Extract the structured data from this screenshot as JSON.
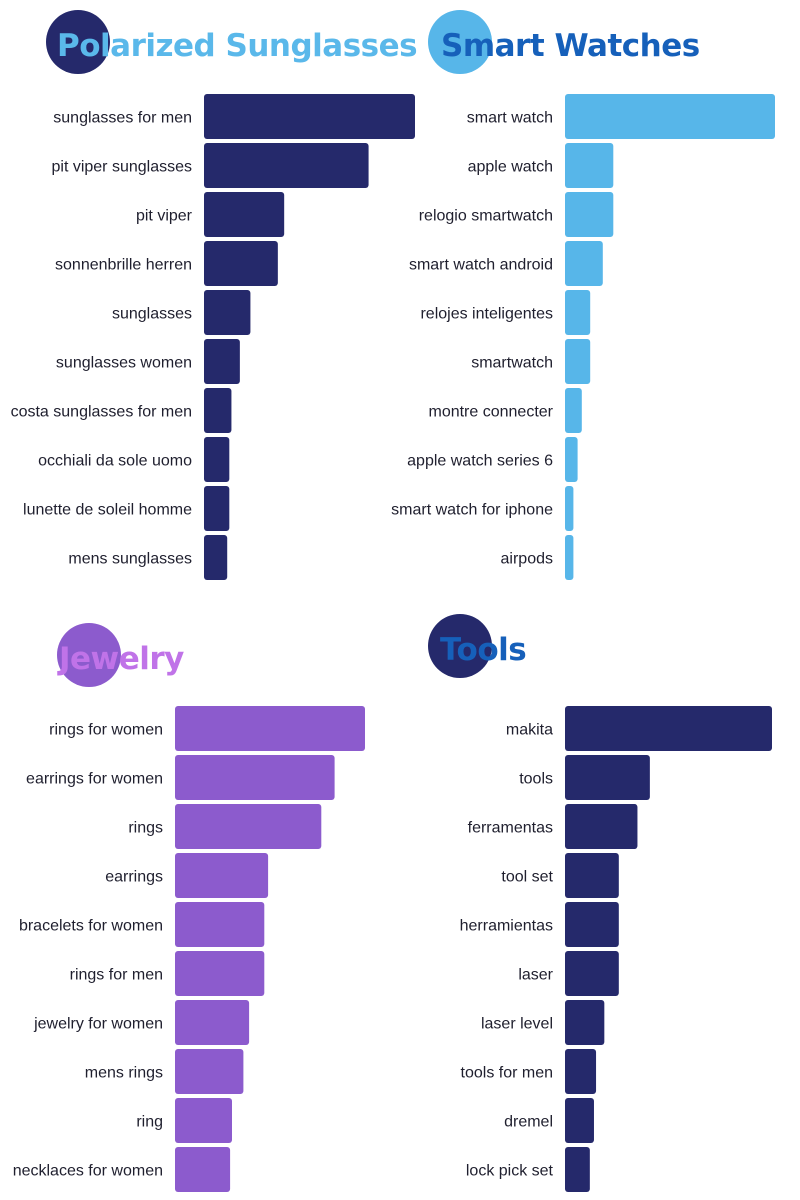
{
  "colors": {
    "navy": "#25296b",
    "sky": "#57b6e9",
    "purple": "#8c5bcd",
    "blue_text": "#1660ba",
    "lavender_text": "#c073e8",
    "sky_text": "#5ab8ea"
  },
  "chart_data": [
    {
      "type": "bar",
      "orientation": "horizontal",
      "title": "Polarized Sunglasses",
      "bar_color": "#25296b",
      "title_color": "#5ab8ea",
      "badge_color": "#25296b",
      "categories": [
        "sunglasses for men",
        "pit viper sunglasses",
        "pit viper",
        "sonnenbrille herren",
        "sunglasses",
        "sunglasses women",
        "costa sunglasses for men",
        "occhiali da sole uomo",
        "lunette de soleil homme",
        "mens sunglasses"
      ],
      "values": [
        100,
        78,
        38,
        35,
        22,
        17,
        13,
        12,
        12,
        11
      ]
    },
    {
      "type": "bar",
      "orientation": "horizontal",
      "title": "Smart Watches",
      "bar_color": "#57b6e9",
      "title_color": "#1660ba",
      "badge_color": "#57b6e9",
      "categories": [
        "smart watch",
        "apple watch",
        "relogio smartwatch",
        "smart watch android",
        "relojes inteligentes",
        "smartwatch",
        "montre connecter",
        "apple watch series 6",
        "smart watch for iphone",
        "airpods"
      ],
      "values": [
        100,
        23,
        23,
        18,
        12,
        12,
        8,
        6,
        4,
        4
      ]
    },
    {
      "type": "bar",
      "orientation": "horizontal",
      "title": "Jewelry",
      "bar_color": "#8c5bcd",
      "title_color": "#c073e8",
      "badge_color": "#8c5bcd",
      "categories": [
        "rings for women",
        "earrings for women",
        "rings",
        "earrings",
        "bracelets for women",
        "rings for men",
        "jewelry for women",
        "mens rings",
        "ring",
        "necklaces for women"
      ],
      "values": [
        100,
        84,
        77,
        49,
        47,
        47,
        39,
        36,
        30,
        29
      ]
    },
    {
      "type": "bar",
      "orientation": "horizontal",
      "title": "Tools",
      "bar_color": "#25296b",
      "title_color": "#1660ba",
      "badge_color": "#25296b",
      "categories": [
        "makita",
        "tools",
        "ferramentas",
        "tool set",
        "herramientas",
        "laser",
        "laser level",
        "tools for men",
        "dremel",
        "lock pick set"
      ],
      "values": [
        100,
        41,
        35,
        26,
        26,
        26,
        19,
        15,
        14,
        12
      ]
    }
  ]
}
